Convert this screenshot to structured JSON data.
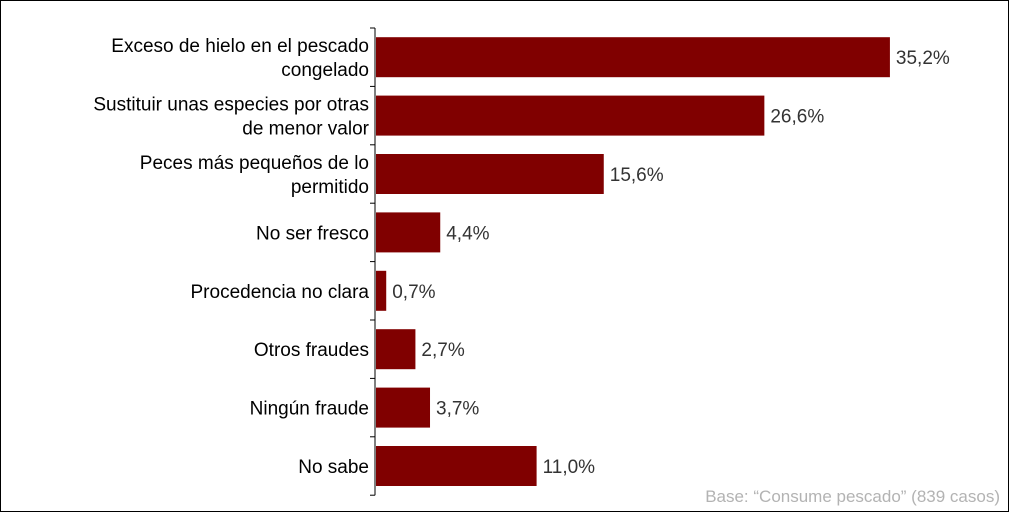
{
  "chart_data": {
    "type": "bar",
    "orientation": "horizontal",
    "categories": [
      [
        "Exceso de hielo en el pescado",
        "congelado"
      ],
      [
        "Sustituir unas especies por otras",
        "de menor valor"
      ],
      [
        "Peces más pequeños de lo",
        "permitido"
      ],
      [
        "No ser fresco"
      ],
      [
        "Procedencia no clara"
      ],
      [
        "Otros fraudes"
      ],
      [
        "Ningún fraude"
      ],
      [
        "No sabe"
      ]
    ],
    "values": [
      35.2,
      26.6,
      15.6,
      4.4,
      0.7,
      2.7,
      3.7,
      11.0
    ],
    "data_labels": [
      "35,2%",
      "26,6%",
      "15,6%",
      "4,4%",
      "0,7%",
      "2,7%",
      "3,7%",
      "11,0%"
    ],
    "xlim": [
      0,
      40
    ],
    "bar_color": "#800000",
    "grid": false,
    "legend": "none"
  },
  "footnote": "Base: “Consume pescado” (839 casos)"
}
